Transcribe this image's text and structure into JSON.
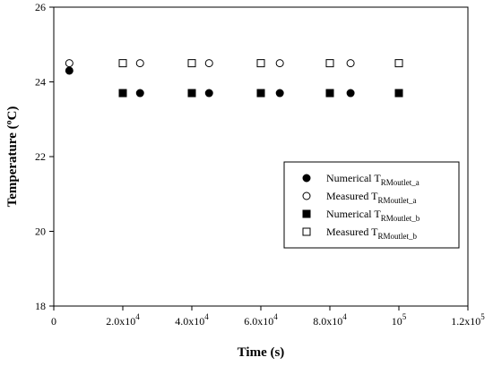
{
  "chart_data": {
    "type": "scatter",
    "xlabel": "Time (s)",
    "ylabel": "Temperature (ºC)",
    "xlim": [
      0,
      120000
    ],
    "ylim": [
      18,
      26
    ],
    "x_ticks": [
      {
        "value": 0,
        "base": "0",
        "exp": ""
      },
      {
        "value": 20000,
        "base": "2.0x10",
        "exp": "4"
      },
      {
        "value": 40000,
        "base": "4.0x10",
        "exp": "4"
      },
      {
        "value": 60000,
        "base": "6.0x10",
        "exp": "4"
      },
      {
        "value": 80000,
        "base": "8.0x10",
        "exp": "4"
      },
      {
        "value": 100000,
        "base": "10",
        "exp": "5"
      },
      {
        "value": 120000,
        "base": "1.2x10",
        "exp": "5"
      }
    ],
    "y_ticks": [
      {
        "value": 18,
        "label": "18"
      },
      {
        "value": 20,
        "label": "20"
      },
      {
        "value": 22,
        "label": "22"
      },
      {
        "value": 24,
        "label": "24"
      },
      {
        "value": 26,
        "label": "26"
      }
    ],
    "legend_position": "center-right",
    "series": [
      {
        "name": "Numerical T_RMoutlet_a",
        "label_main": "Numerical T",
        "label_sub": "RMoutlet_a",
        "marker": "circle",
        "filled": true,
        "x": [
          4500,
          25000,
          45000,
          65500,
          86000
        ],
        "y": [
          24.3,
          23.7,
          23.7,
          23.7,
          23.7
        ]
      },
      {
        "name": "Measured T_RMoutlet_a",
        "label_main": "Measured T",
        "label_sub": "RMoutlet_a",
        "marker": "circle",
        "filled": false,
        "x": [
          4500,
          25000,
          45000,
          65500,
          86000
        ],
        "y": [
          24.5,
          24.5,
          24.5,
          24.5,
          24.5
        ]
      },
      {
        "name": "Numerical T_RMoutlet_b",
        "label_main": "Numerical T",
        "label_sub": "RMoutlet_b",
        "marker": "square",
        "filled": true,
        "x": [
          20000,
          40000,
          60000,
          80000,
          100000
        ],
        "y": [
          23.7,
          23.7,
          23.7,
          23.7,
          23.7
        ]
      },
      {
        "name": "Measured T_RMoutlet_b",
        "label_main": "Measured T",
        "label_sub": "RMoutlet_b",
        "marker": "square",
        "filled": false,
        "x": [
          20000,
          40000,
          60000,
          80000,
          100000
        ],
        "y": [
          24.5,
          24.5,
          24.5,
          24.5,
          24.5
        ]
      }
    ]
  }
}
